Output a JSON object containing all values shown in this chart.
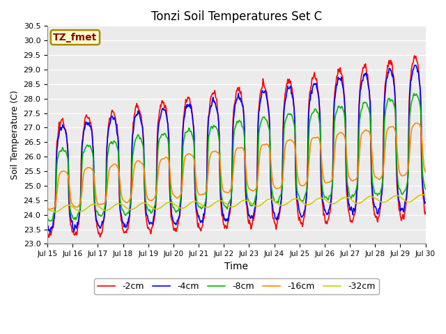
{
  "title": "Tonzi Soil Temperatures Set C",
  "xlabel": "Time",
  "ylabel": "Soil Temperature (C)",
  "ylim": [
    23.0,
    30.5
  ],
  "yticks": [
    23.0,
    23.5,
    24.0,
    24.5,
    25.0,
    25.5,
    26.0,
    26.5,
    27.0,
    27.5,
    28.0,
    28.5,
    29.0,
    29.5,
    30.0,
    30.5
  ],
  "xtick_labels": [
    "Jul 15",
    "Jul 16",
    "Jul 17",
    "Jul 18",
    "Jul 19",
    "Jul 20",
    "Jul 21",
    "Jul 22",
    "Jul 23",
    "Jul 24",
    "Jul 25",
    "Jul 26",
    "Jul 27",
    "Jul 28",
    "Jul 29",
    "Jul 30"
  ],
  "series_colors": [
    "#ff0000",
    "#0000ff",
    "#00bb00",
    "#ff8800",
    "#cccc00"
  ],
  "series_labels": [
    "-2cm",
    "-4cm",
    "-8cm",
    "-16cm",
    "-32cm"
  ],
  "annotation_text": "TZ_fmet",
  "annotation_bg": "#ffffcc",
  "annotation_border": "#aa8800",
  "bg_color": "#ebebeb",
  "fig_bg": "#ffffff",
  "linewidth": 1.2
}
